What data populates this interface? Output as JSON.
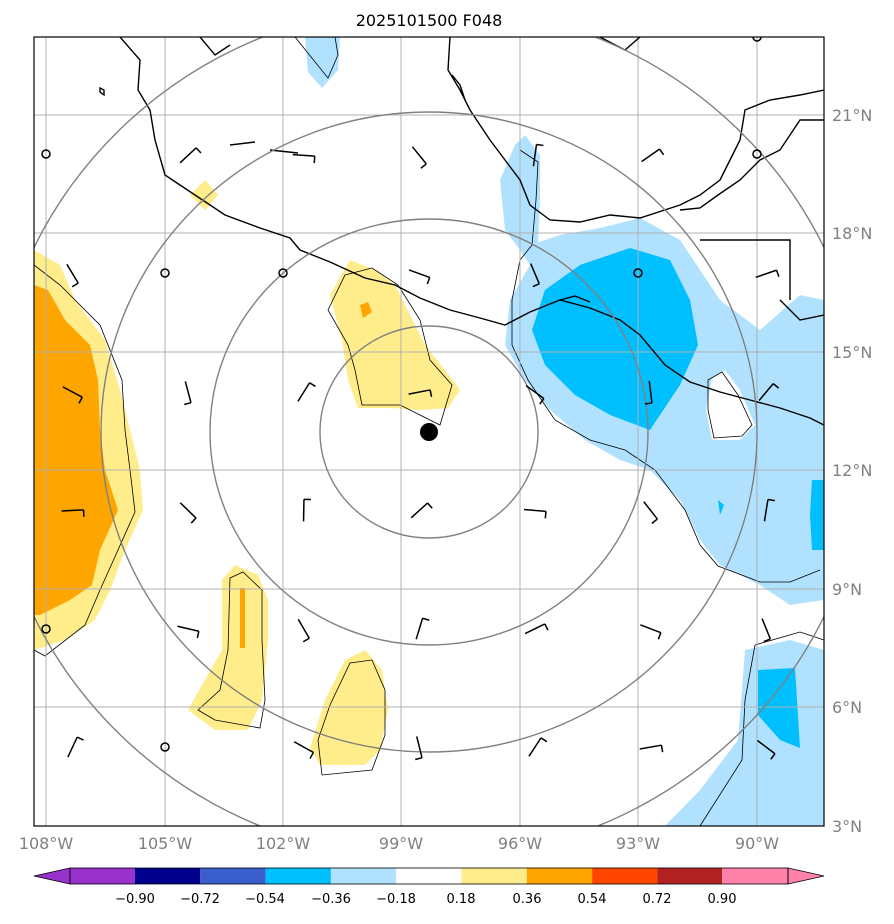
{
  "title": "2025101500 F048",
  "map": {
    "lon_range": [
      -109,
      -88.5
    ],
    "lat_range": [
      3,
      23
    ],
    "gridline_color": "#b0b0b0",
    "coastline_color": "#000000",
    "range_ring_color": "#808080",
    "center_marker": {
      "lon": -98.3,
      "lat": 12.9,
      "color": "#000000"
    },
    "range_rings_deg": [
      3,
      5.4,
      8.1,
      10.8
    ]
  },
  "xticks": [
    {
      "value": -108,
      "label": "108°W"
    },
    {
      "value": -105,
      "label": "105°W"
    },
    {
      "value": -102,
      "label": "102°W"
    },
    {
      "value": -99,
      "label": "99°W"
    },
    {
      "value": -96,
      "label": "96°W"
    },
    {
      "value": -93,
      "label": "93°W"
    },
    {
      "value": -90,
      "label": "90°W"
    }
  ],
  "yticks": [
    {
      "value": 21,
      "label": "21°N"
    },
    {
      "value": 18,
      "label": "18°N"
    },
    {
      "value": 15,
      "label": "15°N"
    },
    {
      "value": 12,
      "label": "12°N"
    },
    {
      "value": 9,
      "label": "9°N"
    },
    {
      "value": 6,
      "label": "6°N"
    },
    {
      "value": 3,
      "label": "3°N"
    }
  ],
  "colorbar": {
    "bounds": [
      "−0.90",
      "−0.72",
      "−0.54",
      "−0.36",
      "−0.18",
      "0.18",
      "0.36",
      "0.54",
      "0.72",
      "0.90"
    ],
    "colors": [
      "#9932cc",
      "#00008b",
      "#3a5fcd",
      "#00bfff",
      "#b0e2ff",
      "#ffffff",
      "#ffec8b",
      "#ffa500",
      "#ff4500",
      "#b22222",
      "#ff82ab"
    ]
  },
  "fields": {
    "light_blue": "#b0e2ff",
    "deep_sky_blue": "#00bfff",
    "light_yellow": "#ffec8b",
    "orange": "#ffa500"
  },
  "wind_barbs": [
    {
      "lon": -108,
      "lat": 20
    },
    {
      "lon": -105,
      "lat": 20
    },
    {
      "lon": -102,
      "lat": 20
    },
    {
      "lon": -99,
      "lat": 20
    },
    {
      "lon": -96,
      "lat": 20
    },
    {
      "lon": -93,
      "lat": 20
    },
    {
      "lon": -90,
      "lat": 20
    },
    {
      "lon": -108,
      "lat": 17
    },
    {
      "lon": -105,
      "lat": 17
    },
    {
      "lon": -102,
      "lat": 17
    },
    {
      "lon": -99,
      "lat": 17
    },
    {
      "lon": -96,
      "lat": 17
    },
    {
      "lon": -93,
      "lat": 17
    },
    {
      "lon": -90,
      "lat": 17
    },
    {
      "lon": -108,
      "lat": 14
    },
    {
      "lon": -105,
      "lat": 14
    },
    {
      "lon": -102,
      "lat": 14
    },
    {
      "lon": -99,
      "lat": 14
    },
    {
      "lon": -96,
      "lat": 14
    },
    {
      "lon": -93,
      "lat": 14
    },
    {
      "lon": -90,
      "lat": 14
    },
    {
      "lon": -108,
      "lat": 11
    },
    {
      "lon": -105,
      "lat": 11
    },
    {
      "lon": -102,
      "lat": 11
    },
    {
      "lon": -99,
      "lat": 11
    },
    {
      "lon": -96,
      "lat": 11
    },
    {
      "lon": -93,
      "lat": 11
    },
    {
      "lon": -90,
      "lat": 11
    },
    {
      "lon": -108,
      "lat": 8
    },
    {
      "lon": -105,
      "lat": 8
    },
    {
      "lon": -102,
      "lat": 8
    },
    {
      "lon": -99,
      "lat": 8
    },
    {
      "lon": -96,
      "lat": 8
    },
    {
      "lon": -93,
      "lat": 8
    },
    {
      "lon": -90,
      "lat": 8
    },
    {
      "lon": -108,
      "lat": 5
    },
    {
      "lon": -105,
      "lat": 5
    },
    {
      "lon": -102,
      "lat": 5
    },
    {
      "lon": -99,
      "lat": 5
    },
    {
      "lon": -96,
      "lat": 5
    },
    {
      "lon": -93,
      "lat": 5
    },
    {
      "lon": -90,
      "lat": 5
    }
  ]
}
